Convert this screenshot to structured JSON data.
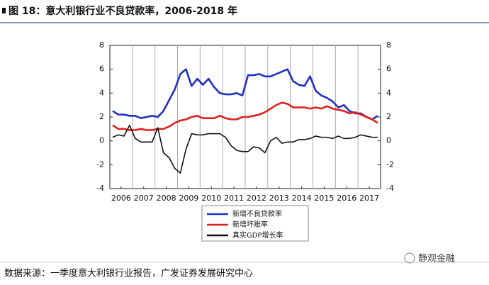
{
  "chart_data": {
    "type": "line",
    "title": "图 18：意大利银行业不良贷款率，2006-2018 年",
    "source": "数据来源：一季度意大利银行业报告，广发证券发展研究中心",
    "watermark": "静观金融",
    "x": [
      2006.125,
      2006.375,
      2006.625,
      2006.875,
      2007.125,
      2007.375,
      2007.625,
      2007.875,
      2008.125,
      2008.375,
      2008.625,
      2008.875,
      2009.125,
      2009.375,
      2009.625,
      2009.875,
      2010.125,
      2010.375,
      2010.625,
      2010.875,
      2011.125,
      2011.375,
      2011.625,
      2011.875,
      2012.125,
      2012.375,
      2012.625,
      2012.875,
      2013.125,
      2013.375,
      2013.625,
      2013.875,
      2014.125,
      2014.375,
      2014.625,
      2014.875,
      2015.125,
      2015.375,
      2015.625,
      2015.875,
      2016.125,
      2016.375,
      2016.625,
      2016.875,
      2017.125,
      2017.375,
      2017.625,
      2017.875
    ],
    "xlim": [
      2006,
      2018
    ],
    "xticks": [
      {
        "value": 2006.5,
        "label": "2006"
      },
      {
        "value": 2007.5,
        "label": "2007"
      },
      {
        "value": 2008.5,
        "label": "2008"
      },
      {
        "value": 2009.5,
        "label": "2009"
      },
      {
        "value": 2010.5,
        "label": "2010"
      },
      {
        "value": 2011.5,
        "label": "2011"
      },
      {
        "value": 2012.5,
        "label": "2012"
      },
      {
        "value": 2013.5,
        "label": "2013"
      },
      {
        "value": 2014.5,
        "label": "2014"
      },
      {
        "value": 2015.5,
        "label": "2015"
      },
      {
        "value": 2016.5,
        "label": "2016"
      },
      {
        "value": 2017.5,
        "label": "2017"
      }
    ],
    "ylim": [
      -4,
      8
    ],
    "yticks": [
      -4,
      -2,
      0,
      2,
      4,
      6,
      8
    ],
    "y2lim": [
      -4,
      8
    ],
    "y2ticks": [
      -4,
      -2,
      0,
      2,
      4,
      6,
      8
    ],
    "series": [
      {
        "name": "新增不良贷款率",
        "color": "#1f2fc0",
        "values": [
          2.5,
          2.2,
          2.2,
          2.1,
          2.1,
          1.9,
          2.0,
          2.1,
          2.0,
          2.5,
          3.4,
          4.3,
          5.6,
          6.0,
          4.6,
          5.2,
          4.7,
          5.2,
          4.5,
          4.0,
          3.9,
          3.9,
          4.0,
          3.8,
          5.5,
          5.5,
          5.6,
          5.4,
          5.4,
          5.6,
          5.8,
          6.0,
          5.0,
          4.7,
          4.6,
          5.4,
          4.2,
          3.8,
          3.6,
          3.3,
          2.8,
          3.0,
          2.5,
          2.3,
          2.3,
          2.0,
          1.8,
          2.1
        ]
      },
      {
        "name": "新增坏账率",
        "color": "#e0201c",
        "values": [
          1.3,
          1.0,
          1.0,
          0.9,
          0.9,
          1.0,
          0.9,
          0.9,
          1.0,
          1.0,
          1.2,
          1.5,
          1.7,
          1.8,
          2.0,
          2.1,
          1.9,
          1.9,
          1.9,
          2.1,
          1.9,
          1.8,
          1.8,
          2.0,
          2.0,
          2.1,
          2.2,
          2.4,
          2.7,
          3.0,
          3.2,
          3.1,
          2.8,
          2.8,
          2.8,
          2.7,
          2.8,
          2.7,
          2.9,
          2.7,
          2.6,
          2.5,
          2.3,
          2.4,
          2.2,
          2.0,
          1.8,
          1.5
        ]
      },
      {
        "name": "真实GDP增长率",
        "color": "#111111",
        "values": [
          0.3,
          0.5,
          0.4,
          1.3,
          0.2,
          -0.1,
          -0.1,
          -0.1,
          1.1,
          -1.0,
          -1.4,
          -2.3,
          -2.7,
          -0.7,
          0.6,
          0.5,
          0.5,
          0.6,
          0.6,
          0.6,
          0.3,
          -0.4,
          -0.8,
          -0.9,
          -0.9,
          -0.5,
          -0.6,
          -1.0,
          0.0,
          0.3,
          -0.2,
          -0.1,
          -0.1,
          0.1,
          0.1,
          0.2,
          0.4,
          0.3,
          0.3,
          0.2,
          0.4,
          0.2,
          0.2,
          0.3,
          0.5,
          0.4,
          0.3,
          0.3
        ]
      }
    ]
  }
}
